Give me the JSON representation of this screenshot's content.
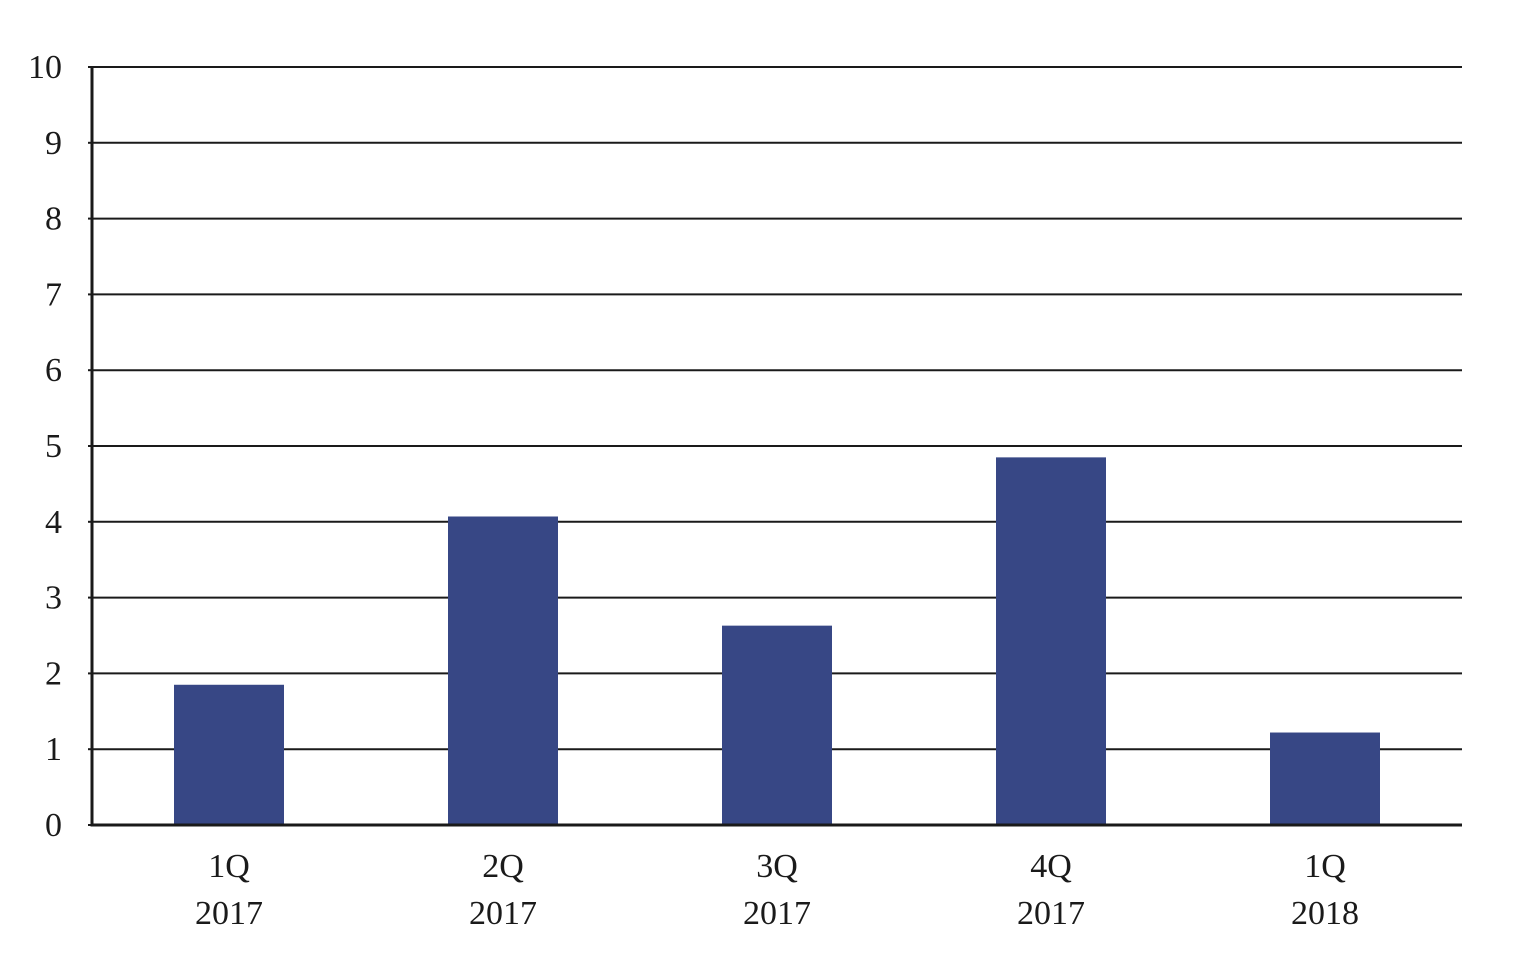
{
  "chart_data": {
    "type": "bar",
    "title": "",
    "xlabel": "",
    "ylabel": "",
    "ylim": [
      0,
      10
    ],
    "yticks": [
      "0",
      "1",
      "2",
      "3",
      "4",
      "5",
      "6",
      "7",
      "8",
      "9",
      "10"
    ],
    "grid": true,
    "legend": "none",
    "categories": [
      {
        "line1": "1Q",
        "line2": "2017"
      },
      {
        "line1": "2Q",
        "line2": "2017"
      },
      {
        "line1": "3Q",
        "line2": "2017"
      },
      {
        "line1": "4Q",
        "line2": "2017"
      },
      {
        "line1": "1Q",
        "line2": "2018"
      }
    ],
    "values": [
      1.85,
      4.07,
      2.63,
      4.85,
      1.22
    ],
    "colors": {
      "bar": "#374785",
      "axis": "#1a1a1a",
      "grid": "#1a1a1a"
    }
  }
}
